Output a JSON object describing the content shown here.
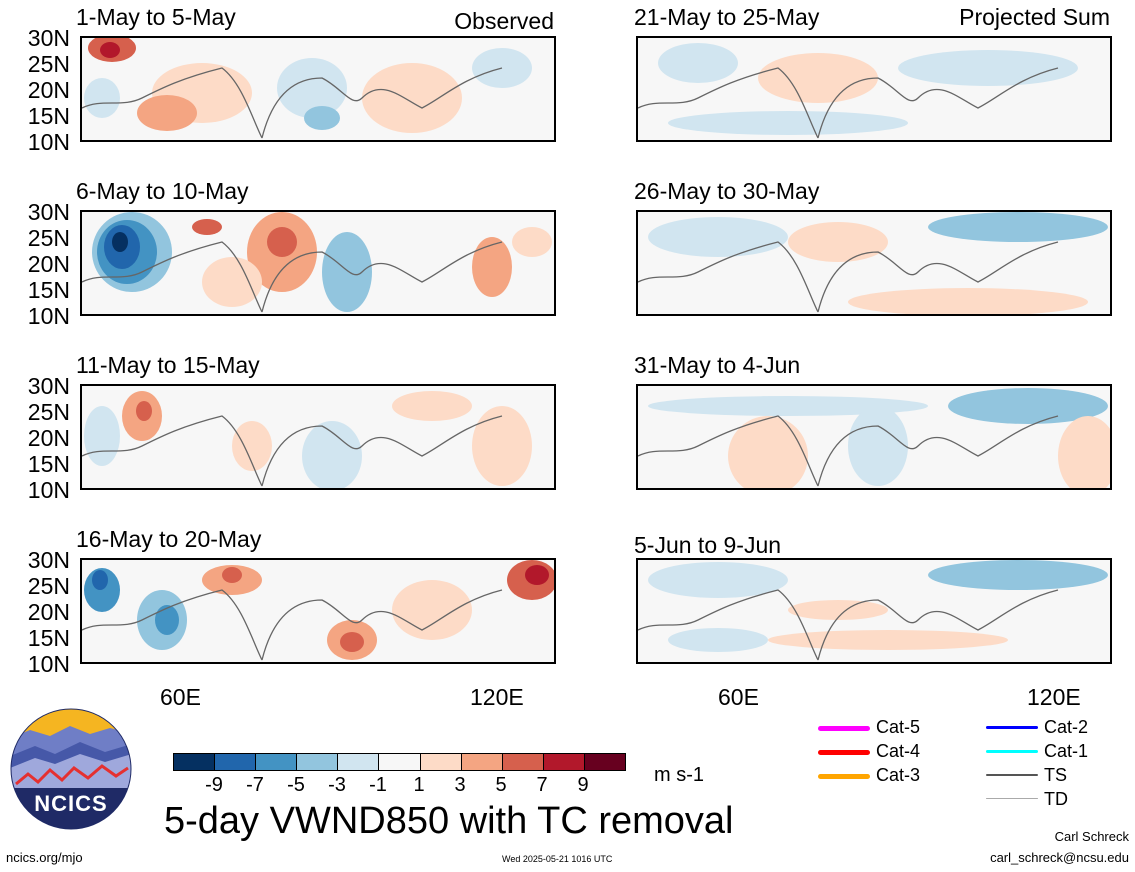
{
  "panels": [
    {
      "title": "1-May to 5-May",
      "tag": "Observed"
    },
    {
      "title": "6-May to 10-May",
      "tag": ""
    },
    {
      "title": "11-May to 15-May",
      "tag": ""
    },
    {
      "title": "16-May to 20-May",
      "tag": ""
    },
    {
      "title": "21-May to 25-May",
      "tag": "Projected Sum"
    },
    {
      "title": "26-May to 30-May",
      "tag": ""
    },
    {
      "title": "31-May to 4-Jun",
      "tag": ""
    },
    {
      "title": "5-Jun to 9-Jun",
      "tag": ""
    }
  ],
  "lat_labels": [
    "30N",
    "25N",
    "20N",
    "15N",
    "10N"
  ],
  "lon_labels": [
    "60E",
    "120E"
  ],
  "colorbar": {
    "colors": [
      "#053061",
      "#2166ac",
      "#4393c3",
      "#92c5de",
      "#d1e5f0",
      "#f7f7f7",
      "#fddbc7",
      "#f4a582",
      "#d6604d",
      "#b2182b",
      "#67001f"
    ],
    "labels": [
      "-9",
      "-7",
      "-5",
      "-3",
      "-1",
      "1",
      "3",
      "5",
      "7",
      "9"
    ],
    "units": "m s-1"
  },
  "main_title": "5-day VWND850 with TC removal",
  "legend": [
    {
      "label": "Cat-5",
      "color": "#ff00ff"
    },
    {
      "label": "Cat-4",
      "color": "#ff0000"
    },
    {
      "label": "Cat-3",
      "color": "#ffa500"
    },
    {
      "label": "Cat-2",
      "color": "#0000ff"
    },
    {
      "label": "Cat-1",
      "color": "#00ffff"
    },
    {
      "label": "TS",
      "color": "#555555"
    },
    {
      "label": "TD",
      "color": "#aaaaaa"
    }
  ],
  "logo_text": "NCICS",
  "footer": {
    "url": "ncics.org/mjo",
    "timestamp": "Wed 2025-05-21 1016 UTC",
    "author": "Carl Schreck",
    "email": "carl_schreck@ncsu.edu"
  }
}
